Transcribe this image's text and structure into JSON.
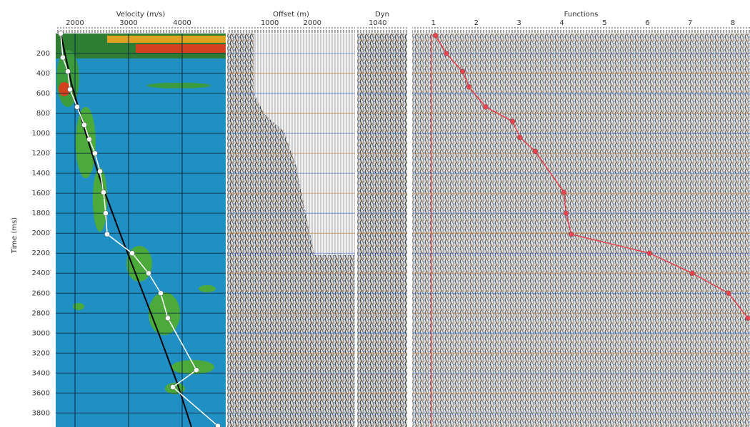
{
  "chart_data": [
    {
      "type": "line",
      "title": "Velocity (m/s)",
      "y_label": "Time (ms)",
      "xlim": [
        1640,
        4813
      ],
      "xticks": [
        2000,
        3000,
        4000
      ],
      "ylim": [
        0,
        3940
      ],
      "y_inverted": true,
      "yticks": [
        200,
        400,
        600,
        800,
        1000,
        1200,
        1400,
        1600,
        1800,
        2000,
        2200,
        2400,
        2600,
        2800,
        3000,
        3200,
        3400,
        3600,
        3800
      ],
      "grid": true,
      "series": [
        {
          "color": "#000000",
          "markers": false,
          "x": [
            1733,
            1933,
            2200,
            2493,
            2840,
            3200,
            3560,
            3907,
            4173
          ],
          "values": [
            0,
            500,
            1000,
            1500,
            2000,
            2500,
            3000,
            3500,
            3940
          ]
        },
        {
          "color": "#ffffff",
          "markers": true,
          "x": [
            1733,
            1773,
            1867,
            1907,
            2040,
            2173,
            2267,
            2373,
            2467,
            2533,
            2573,
            2600,
            3067,
            3373,
            3600,
            3733,
            4267,
            3827,
            4667
          ],
          "values": [
            0,
            240,
            380,
            560,
            735,
            915,
            1060,
            1200,
            1380,
            1590,
            1800,
            2010,
            2200,
            2400,
            2600,
            2850,
            3370,
            3540,
            3930
          ]
        }
      ]
    },
    {
      "type": "seismic",
      "title": "Offset (m)",
      "xlim": [
        0,
        3000
      ],
      "xticks": [
        1000,
        2000
      ],
      "ylim": [
        0,
        3940
      ],
      "y_inverted": true,
      "grid": true
    },
    {
      "type": "seismic",
      "title": "Dyn",
      "xlim": [
        970,
        1140
      ],
      "xticks": [
        1040
      ],
      "ylim": [
        0,
        3940
      ],
      "y_inverted": true,
      "grid": true
    },
    {
      "type": "line",
      "title": "Functions",
      "xlim": [
        0.5,
        8.4
      ],
      "xticks": [
        1,
        2,
        3,
        4,
        5,
        6,
        7,
        8
      ],
      "ylim": [
        0,
        3940
      ],
      "y_inverted": true,
      "grid": true,
      "series": [
        {
          "color": "#e8434f",
          "markers": true,
          "x": [
            1.05,
            1.3,
            1.68,
            1.83,
            2.22,
            2.85,
            3.02,
            3.38,
            4.05,
            4.1,
            4.22,
            6.05,
            7.05,
            7.9,
            8.35
          ],
          "values": [
            20,
            200,
            380,
            535,
            735,
            880,
            1040,
            1180,
            1590,
            1800,
            2010,
            2200,
            2400,
            2600,
            2850
          ]
        }
      ]
    }
  ]
}
